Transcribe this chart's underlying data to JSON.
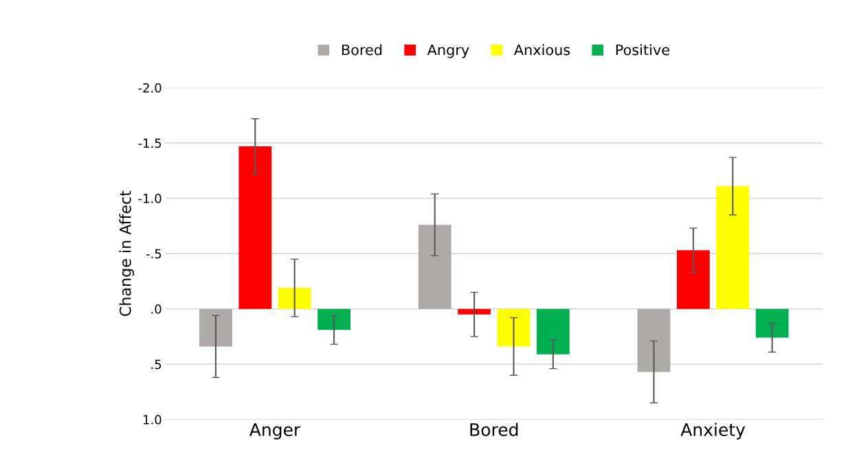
{
  "chart_data": {
    "type": "bar",
    "ylabel": "Change in Affect",
    "categories": [
      "Anger",
      "Bored",
      "Anxiety"
    ],
    "series": [
      {
        "name": "Bored",
        "color": "#aeaaaa",
        "values": [
          0.34,
          -0.76,
          0.57
        ],
        "errors": [
          0.28,
          0.28,
          0.28
        ]
      },
      {
        "name": "Angry",
        "color": "#ff0000",
        "values": [
          -1.47,
          0.05,
          -0.53
        ],
        "errors": [
          0.25,
          0.2,
          0.2
        ]
      },
      {
        "name": "Anxious",
        "color": "#ffff00",
        "values": [
          -0.19,
          0.34,
          -1.11
        ],
        "errors": [
          0.26,
          0.26,
          0.26
        ]
      },
      {
        "name": "Positive",
        "color": "#00b050",
        "values": [
          0.19,
          0.41,
          0.26
        ],
        "errors": [
          0.13,
          0.13,
          0.13
        ]
      }
    ],
    "ylim": [
      1.0,
      -2.0
    ],
    "yticks": [
      {
        "value": -2.0,
        "label": "-2.0"
      },
      {
        "value": -1.5,
        "label": "-1.5"
      },
      {
        "value": -1.0,
        "label": "-1.0"
      },
      {
        "value": -0.5,
        "label": "-.5"
      },
      {
        "value": 0,
        "label": ".0"
      },
      {
        "value": 0.5,
        "label": ".5"
      },
      {
        "value": 1.0,
        "label": "1.0"
      }
    ],
    "grid": "y",
    "legend": "top"
  }
}
